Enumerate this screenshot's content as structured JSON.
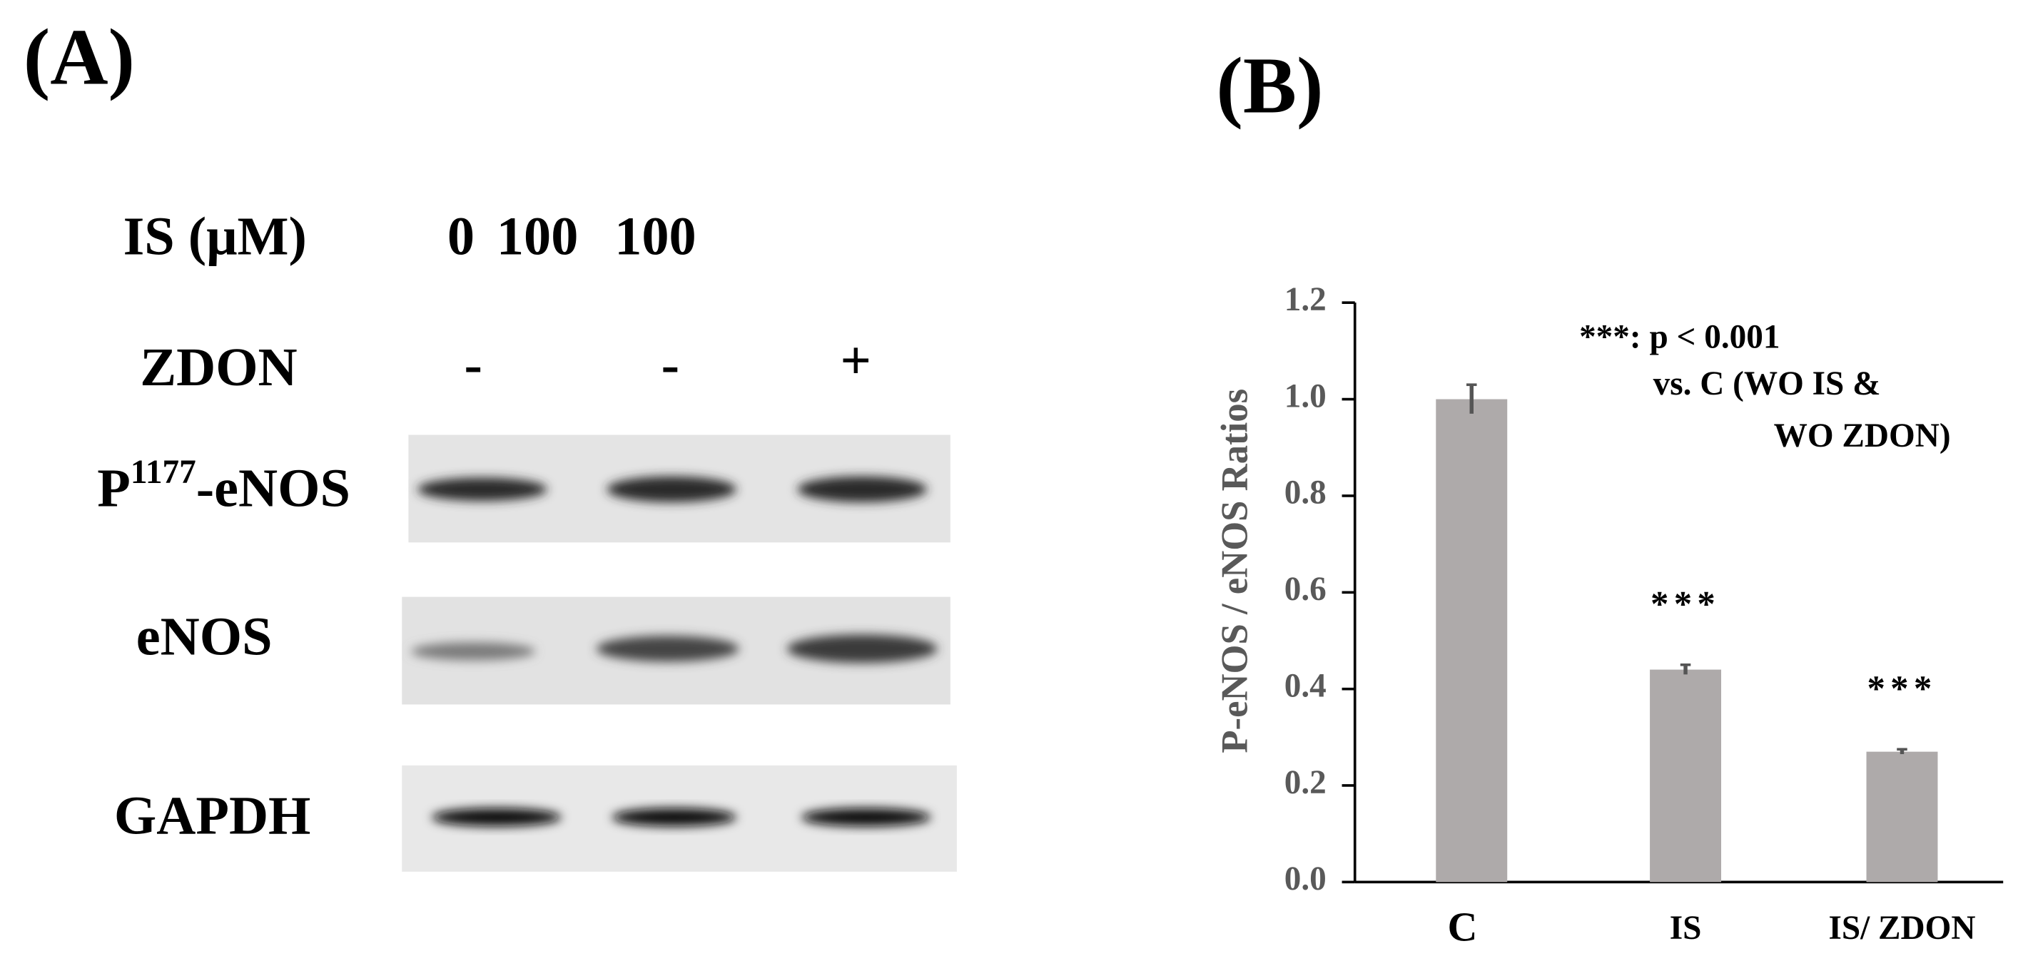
{
  "panel_a": {
    "title": "(A)",
    "conditions": [
      {
        "label": "IS (μM)",
        "values": [
          "0",
          "100",
          "100"
        ]
      },
      {
        "label": "ZDON",
        "values": [
          "-",
          "-",
          "+"
        ]
      }
    ],
    "blots": [
      {
        "label": {
          "prefix": "P",
          "superscript": "1177",
          "suffix": "-eNOS"
        }
      },
      {
        "label": "eNOS"
      },
      {
        "label": "GAPDH"
      }
    ]
  },
  "chart_data": {
    "type": "bar",
    "title": "(B)",
    "y_label": "P-eNOS / eNOS Ratios",
    "categories": [
      "C",
      "IS",
      "IS/ ZDON"
    ],
    "values": [
      1.0,
      0.44,
      0.27
    ],
    "errors": [
      0.03,
      0.01,
      0.005
    ],
    "significance": [
      null,
      "***",
      "***"
    ],
    "annotation": [
      "***: p < 0.001",
      "vs. C (WO IS &",
      "WO ZDON)"
    ],
    "color": "#aeaaaa",
    "ylim": [
      0,
      1.2
    ],
    "yticks": [
      {
        "value": 0,
        "label": "0.0"
      },
      0.2,
      0.4,
      0.6,
      0.8,
      {
        "value": 1,
        "label": "1.0"
      },
      1.2
    ]
  }
}
